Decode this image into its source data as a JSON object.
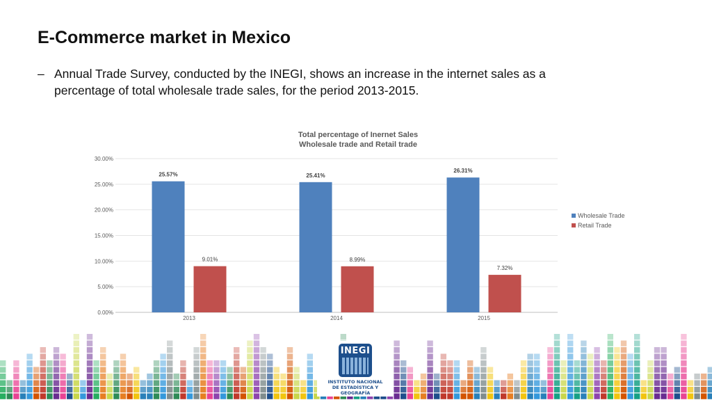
{
  "slide": {
    "title": "E-Commerce market in Mexico",
    "bullet_marker": "–",
    "bullet": "Annual Trade Survey, conducted by the INEGI, shows an increase in the internet sales as a percentage of total wholesale trade sales, for the period 2013-2015."
  },
  "chart_data": {
    "type": "bar",
    "title": "Total percentage of Inernet Sales",
    "subtitle": "Wholesale trade and Retail trade",
    "categories": [
      "2013",
      "2014",
      "2015"
    ],
    "series": [
      {
        "name": "Wholesale Trade",
        "values": [
          25.57,
          25.41,
          26.31
        ],
        "labels": [
          "25.57%",
          "25.41%",
          "26.31%"
        ],
        "color": "#4f81bd"
      },
      {
        "name": "Retail Trade",
        "values": [
          9.01,
          8.99,
          7.32
        ],
        "labels": [
          "9.01%",
          "8.99%",
          "7.32%"
        ],
        "color": "#c0504d"
      }
    ],
    "yticks": [
      "0.00%",
      "5.00%",
      "10.00%",
      "15.00%",
      "20.00%",
      "25.00%",
      "30.00%"
    ],
    "ylim": [
      0,
      30
    ],
    "grid": true,
    "legend": "right"
  },
  "footer": {
    "logo_text": "INEGI",
    "logo_caption_line1": "INSTITUTO NACIONAL",
    "logo_caption_line2": "DE ESTADÍSTICA Y GEOGRAFÍA",
    "bar_colors": [
      "#1f4e8c",
      "#c0392b",
      "#6a2c91",
      "#2e8b57",
      "#e67e22",
      "#f1c40f",
      "#3498db",
      "#e84393",
      "#27ae60",
      "#7f8c8d",
      "#16a085",
      "#d35400",
      "#8e44ad",
      "#2980b9",
      "#c8d64a"
    ]
  }
}
